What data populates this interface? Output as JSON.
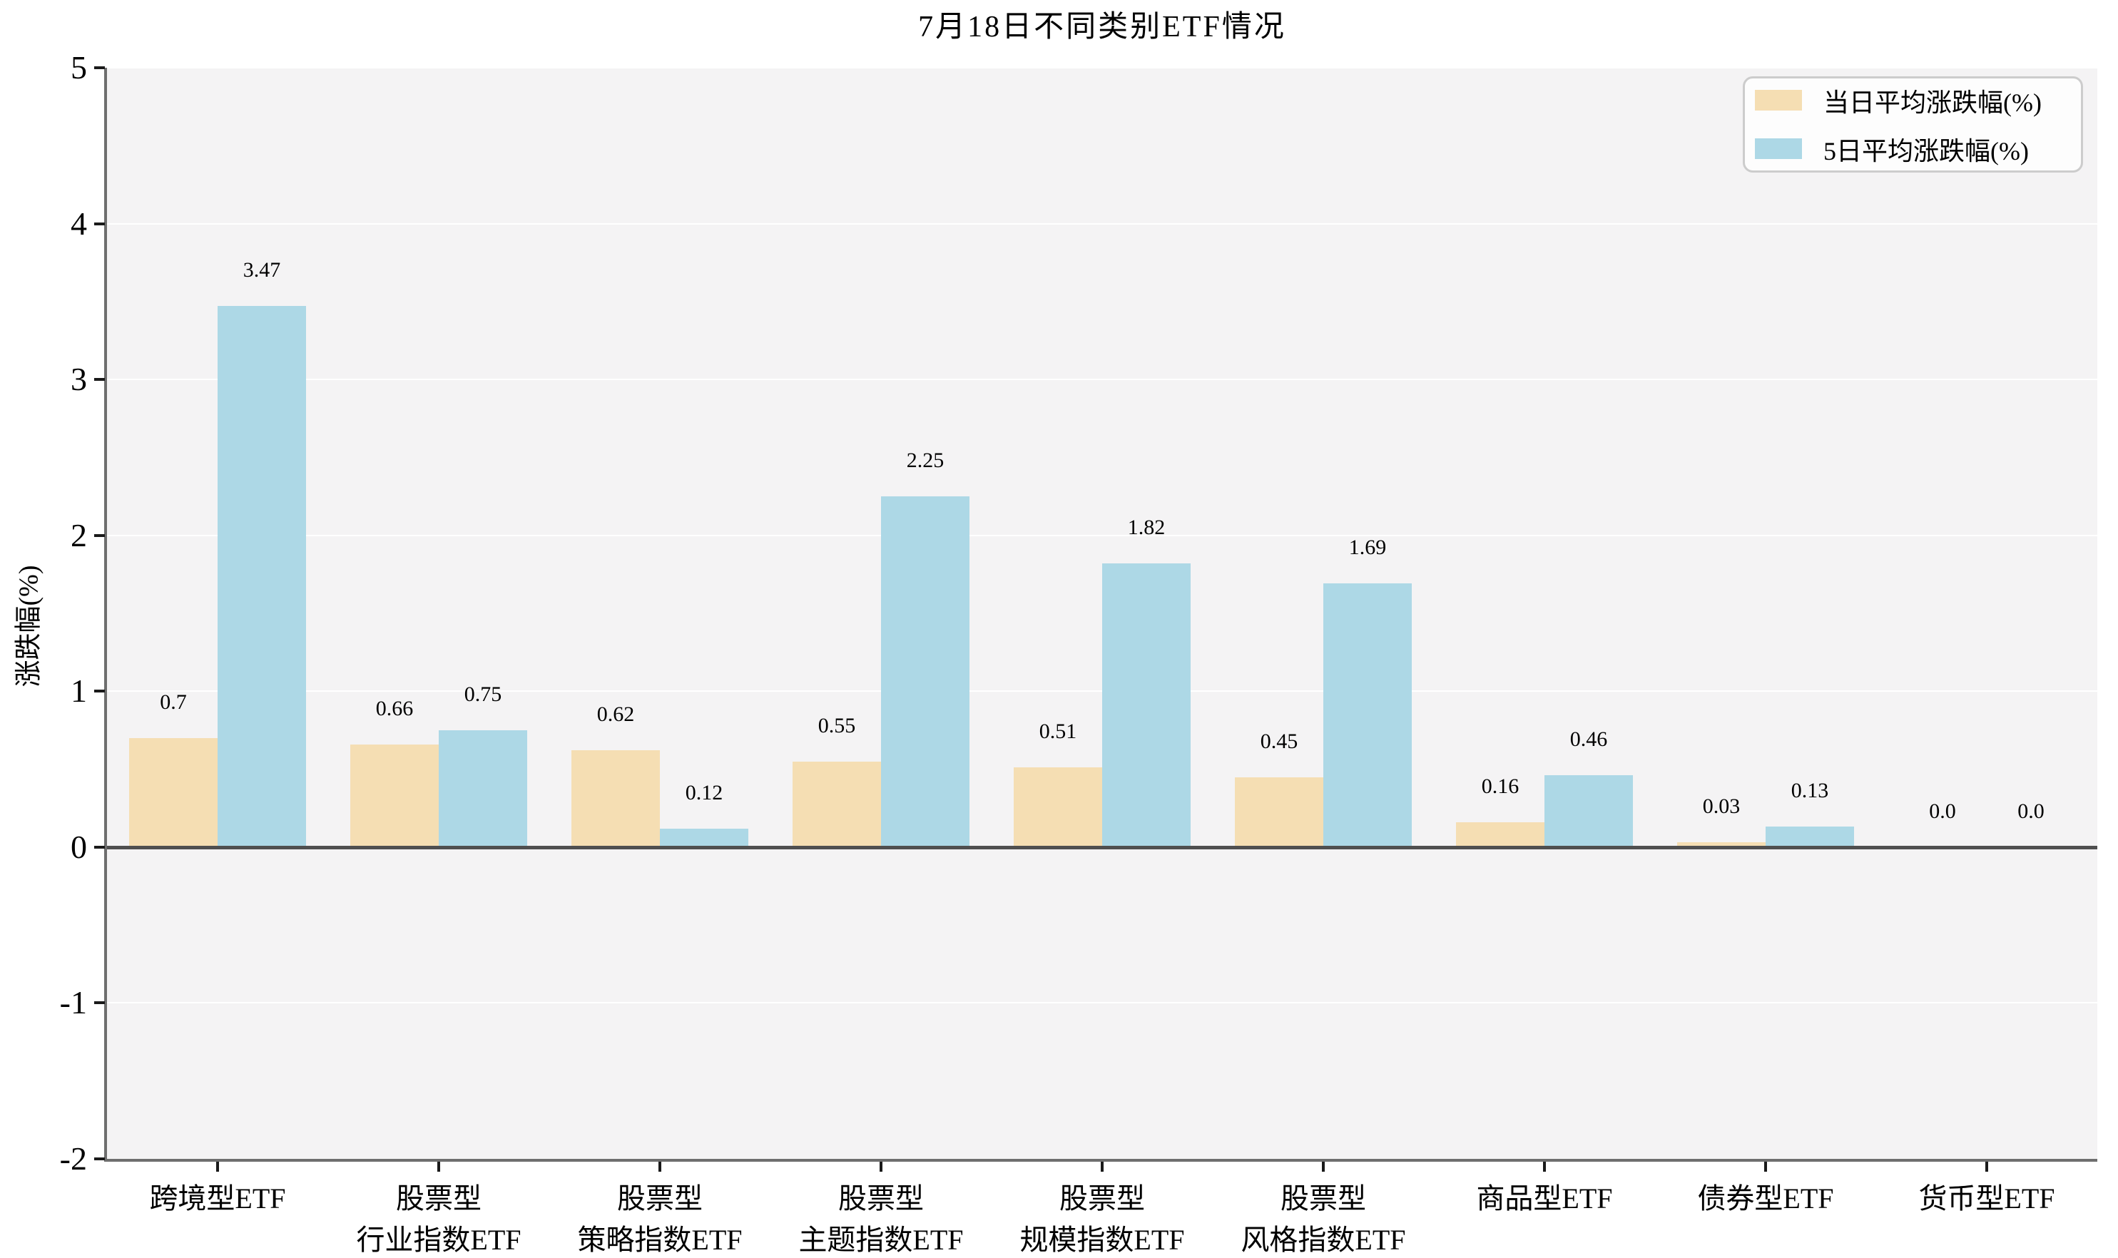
{
  "title": "7月18日不同类别ETF情况",
  "chart_data": {
    "type": "bar",
    "title": "7月18日不同类别ETF情况",
    "xlabel": "",
    "ylabel": "涨跌幅(%)",
    "ylim": [
      -2,
      5
    ],
    "yticks": [
      5,
      4,
      3,
      2,
      1,
      0,
      -1,
      -2
    ],
    "grid": true,
    "legend_position": "upper right",
    "categories": [
      "跨境型ETF",
      "股票型\n行业指数ETF",
      "股票型\n策略指数ETF",
      "股票型\n主题指数ETF",
      "股票型\n规模指数ETF",
      "股票型\n风格指数ETF",
      "商品型ETF",
      "债券型ETF",
      "货币型ETF"
    ],
    "series": [
      {
        "name": "当日平均涨跌幅(%)",
        "color": "#f5deb3",
        "values": [
          0.7,
          0.66,
          0.62,
          0.55,
          0.51,
          0.45,
          0.16,
          0.03,
          0.0
        ],
        "value_labels": [
          "0.7",
          "0.66",
          "0.62",
          "0.55",
          "0.51",
          "0.45",
          "0.16",
          "0.03",
          "0.0"
        ]
      },
      {
        "name": "5日平均涨跌幅(%)",
        "color": "#add8e6",
        "values": [
          3.47,
          0.75,
          0.12,
          2.25,
          1.82,
          1.69,
          0.46,
          0.13,
          0.0
        ],
        "value_labels": [
          "3.47",
          "0.75",
          "0.12",
          "2.25",
          "1.82",
          "1.69",
          "0.46",
          "0.13",
          "0.0"
        ]
      }
    ]
  },
  "colors": {
    "plot_background": "#f4f3f4",
    "gridline": "#ffffff",
    "spine": "#6e6e6e",
    "zero_line": "#4f4f4f",
    "tick": "#1a1a1a"
  }
}
